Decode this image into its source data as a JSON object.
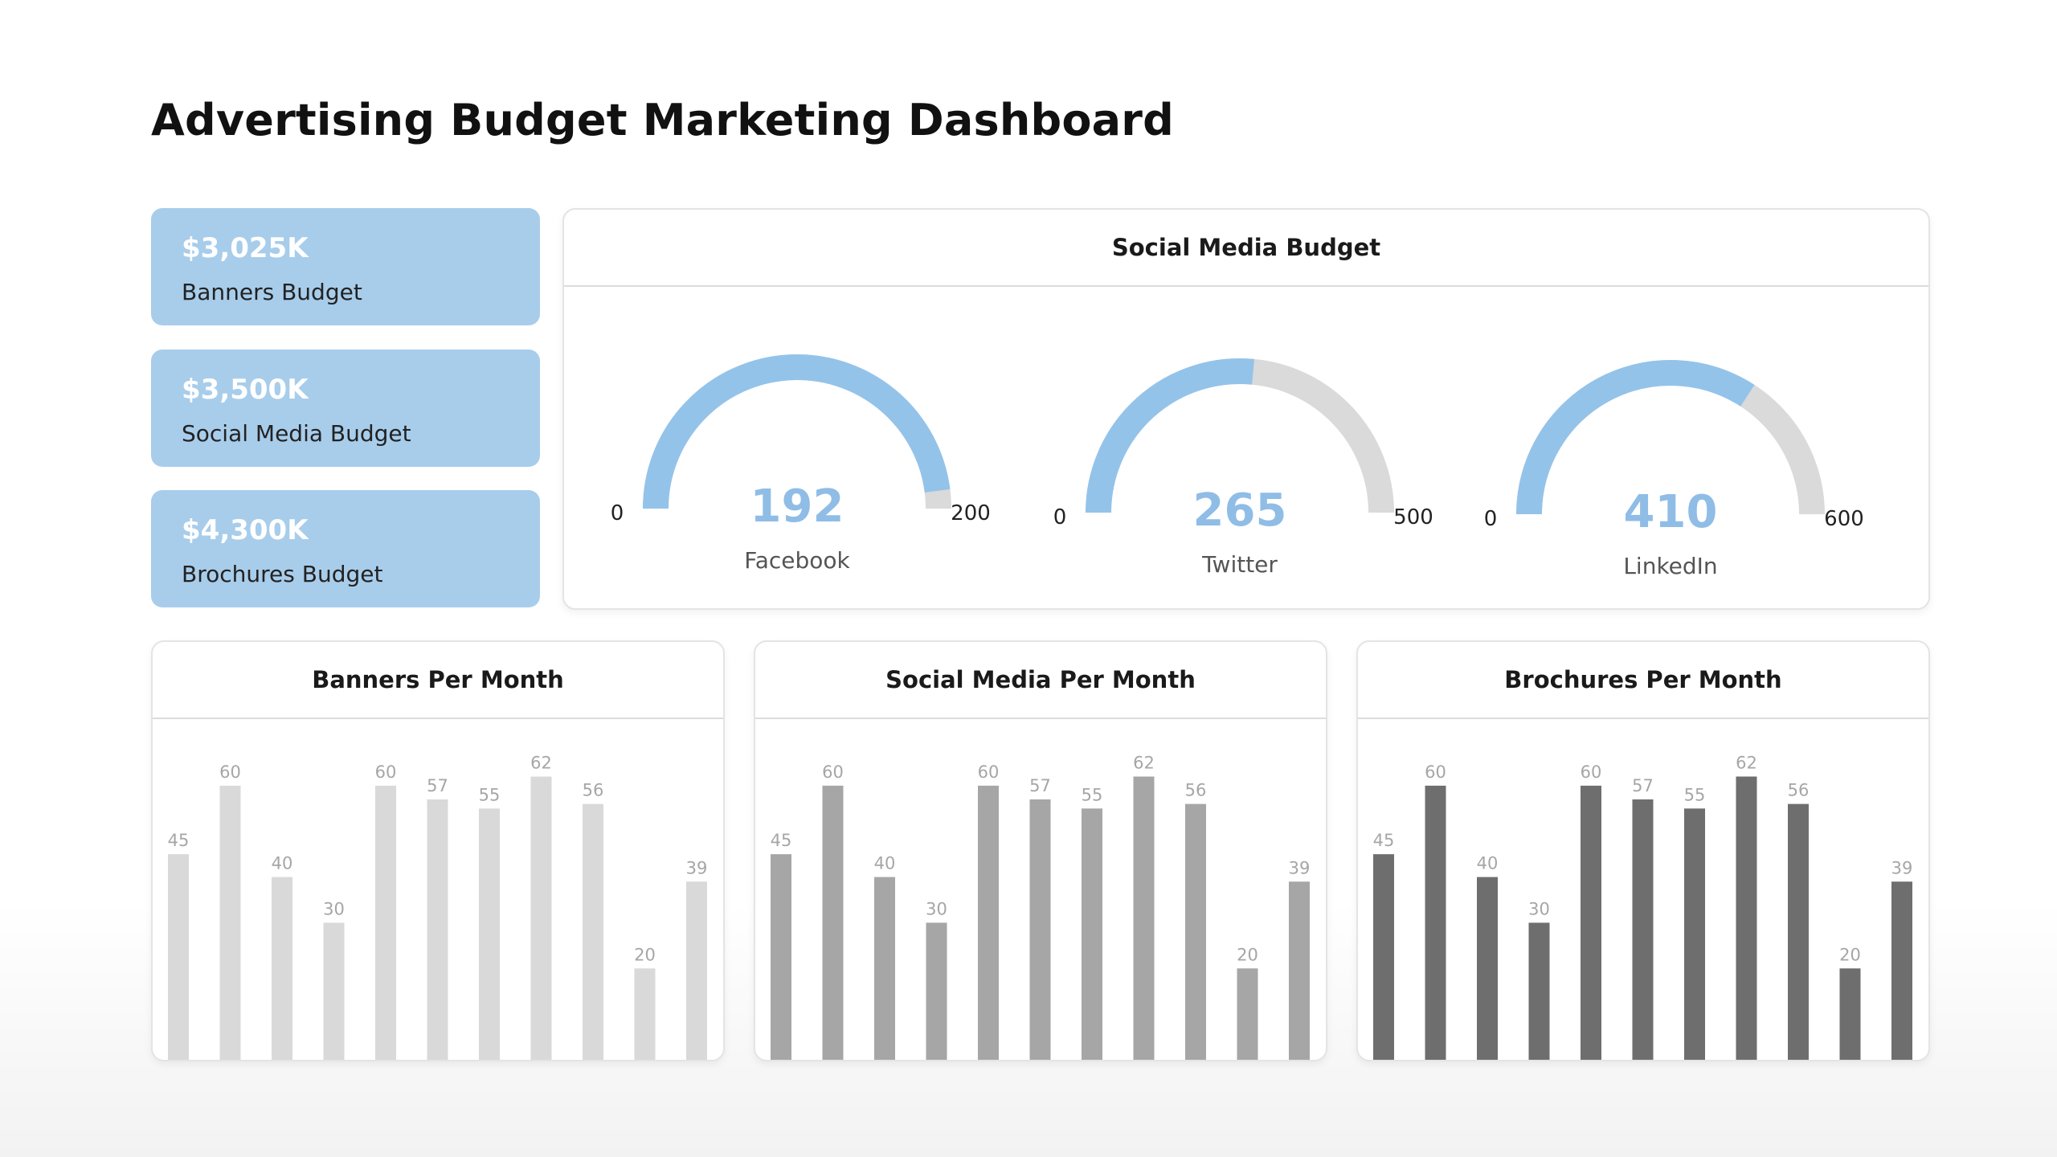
{
  "title": "Advertising Budget Marketing Dashboard",
  "kpis": [
    {
      "value": "$3,025K",
      "label": "Banners Budget"
    },
    {
      "value": "$3,500K",
      "label": "Social Media Budget"
    },
    {
      "value": "$4,300K",
      "label": "Brochures Budget"
    }
  ],
  "colors": {
    "kpi_bg": "#a8cdeb",
    "gauge_fill": "#94c3ea",
    "gauge_track": "#dadada",
    "gauge_value_text": "#8fbde6",
    "bar_light": "#d9d9d9",
    "bar_medium": "#a6a6a6",
    "bar_dark": "#6e6e6e"
  },
  "social_panel": {
    "title": "Social Media Budget"
  },
  "chart_data": [
    {
      "type": "gauge",
      "title": "Social Media Budget",
      "gauges": [
        {
          "name": "Facebook",
          "value": 192,
          "min": 0,
          "max": 200,
          "min_label": "0",
          "max_label": "200",
          "value_label": "192"
        },
        {
          "name": "Twitter",
          "value": 265,
          "min": 0,
          "max": 500,
          "min_label": "0",
          "max_label": "500",
          "value_label": "265"
        },
        {
          "name": "LinkedIn",
          "value": 410,
          "min": 0,
          "max": 600,
          "min_label": "0",
          "max_label": "600",
          "value_label": "410"
        }
      ]
    },
    {
      "type": "bar",
      "title": "Banners Per Month",
      "values": [
        45,
        60,
        40,
        30,
        60,
        57,
        55,
        62,
        56,
        20,
        39
      ],
      "color": "#d9d9d9",
      "ylim": [
        0,
        70
      ]
    },
    {
      "type": "bar",
      "title": "Social Media Per Month",
      "values": [
        45,
        60,
        40,
        30,
        60,
        57,
        55,
        62,
        56,
        20,
        39
      ],
      "color": "#a6a6a6",
      "ylim": [
        0,
        70
      ]
    },
    {
      "type": "bar",
      "title": "Brochures Per Month",
      "values": [
        45,
        60,
        40,
        30,
        60,
        57,
        55,
        62,
        56,
        20,
        39
      ],
      "color": "#6e6e6e",
      "ylim": [
        0,
        70
      ]
    }
  ]
}
